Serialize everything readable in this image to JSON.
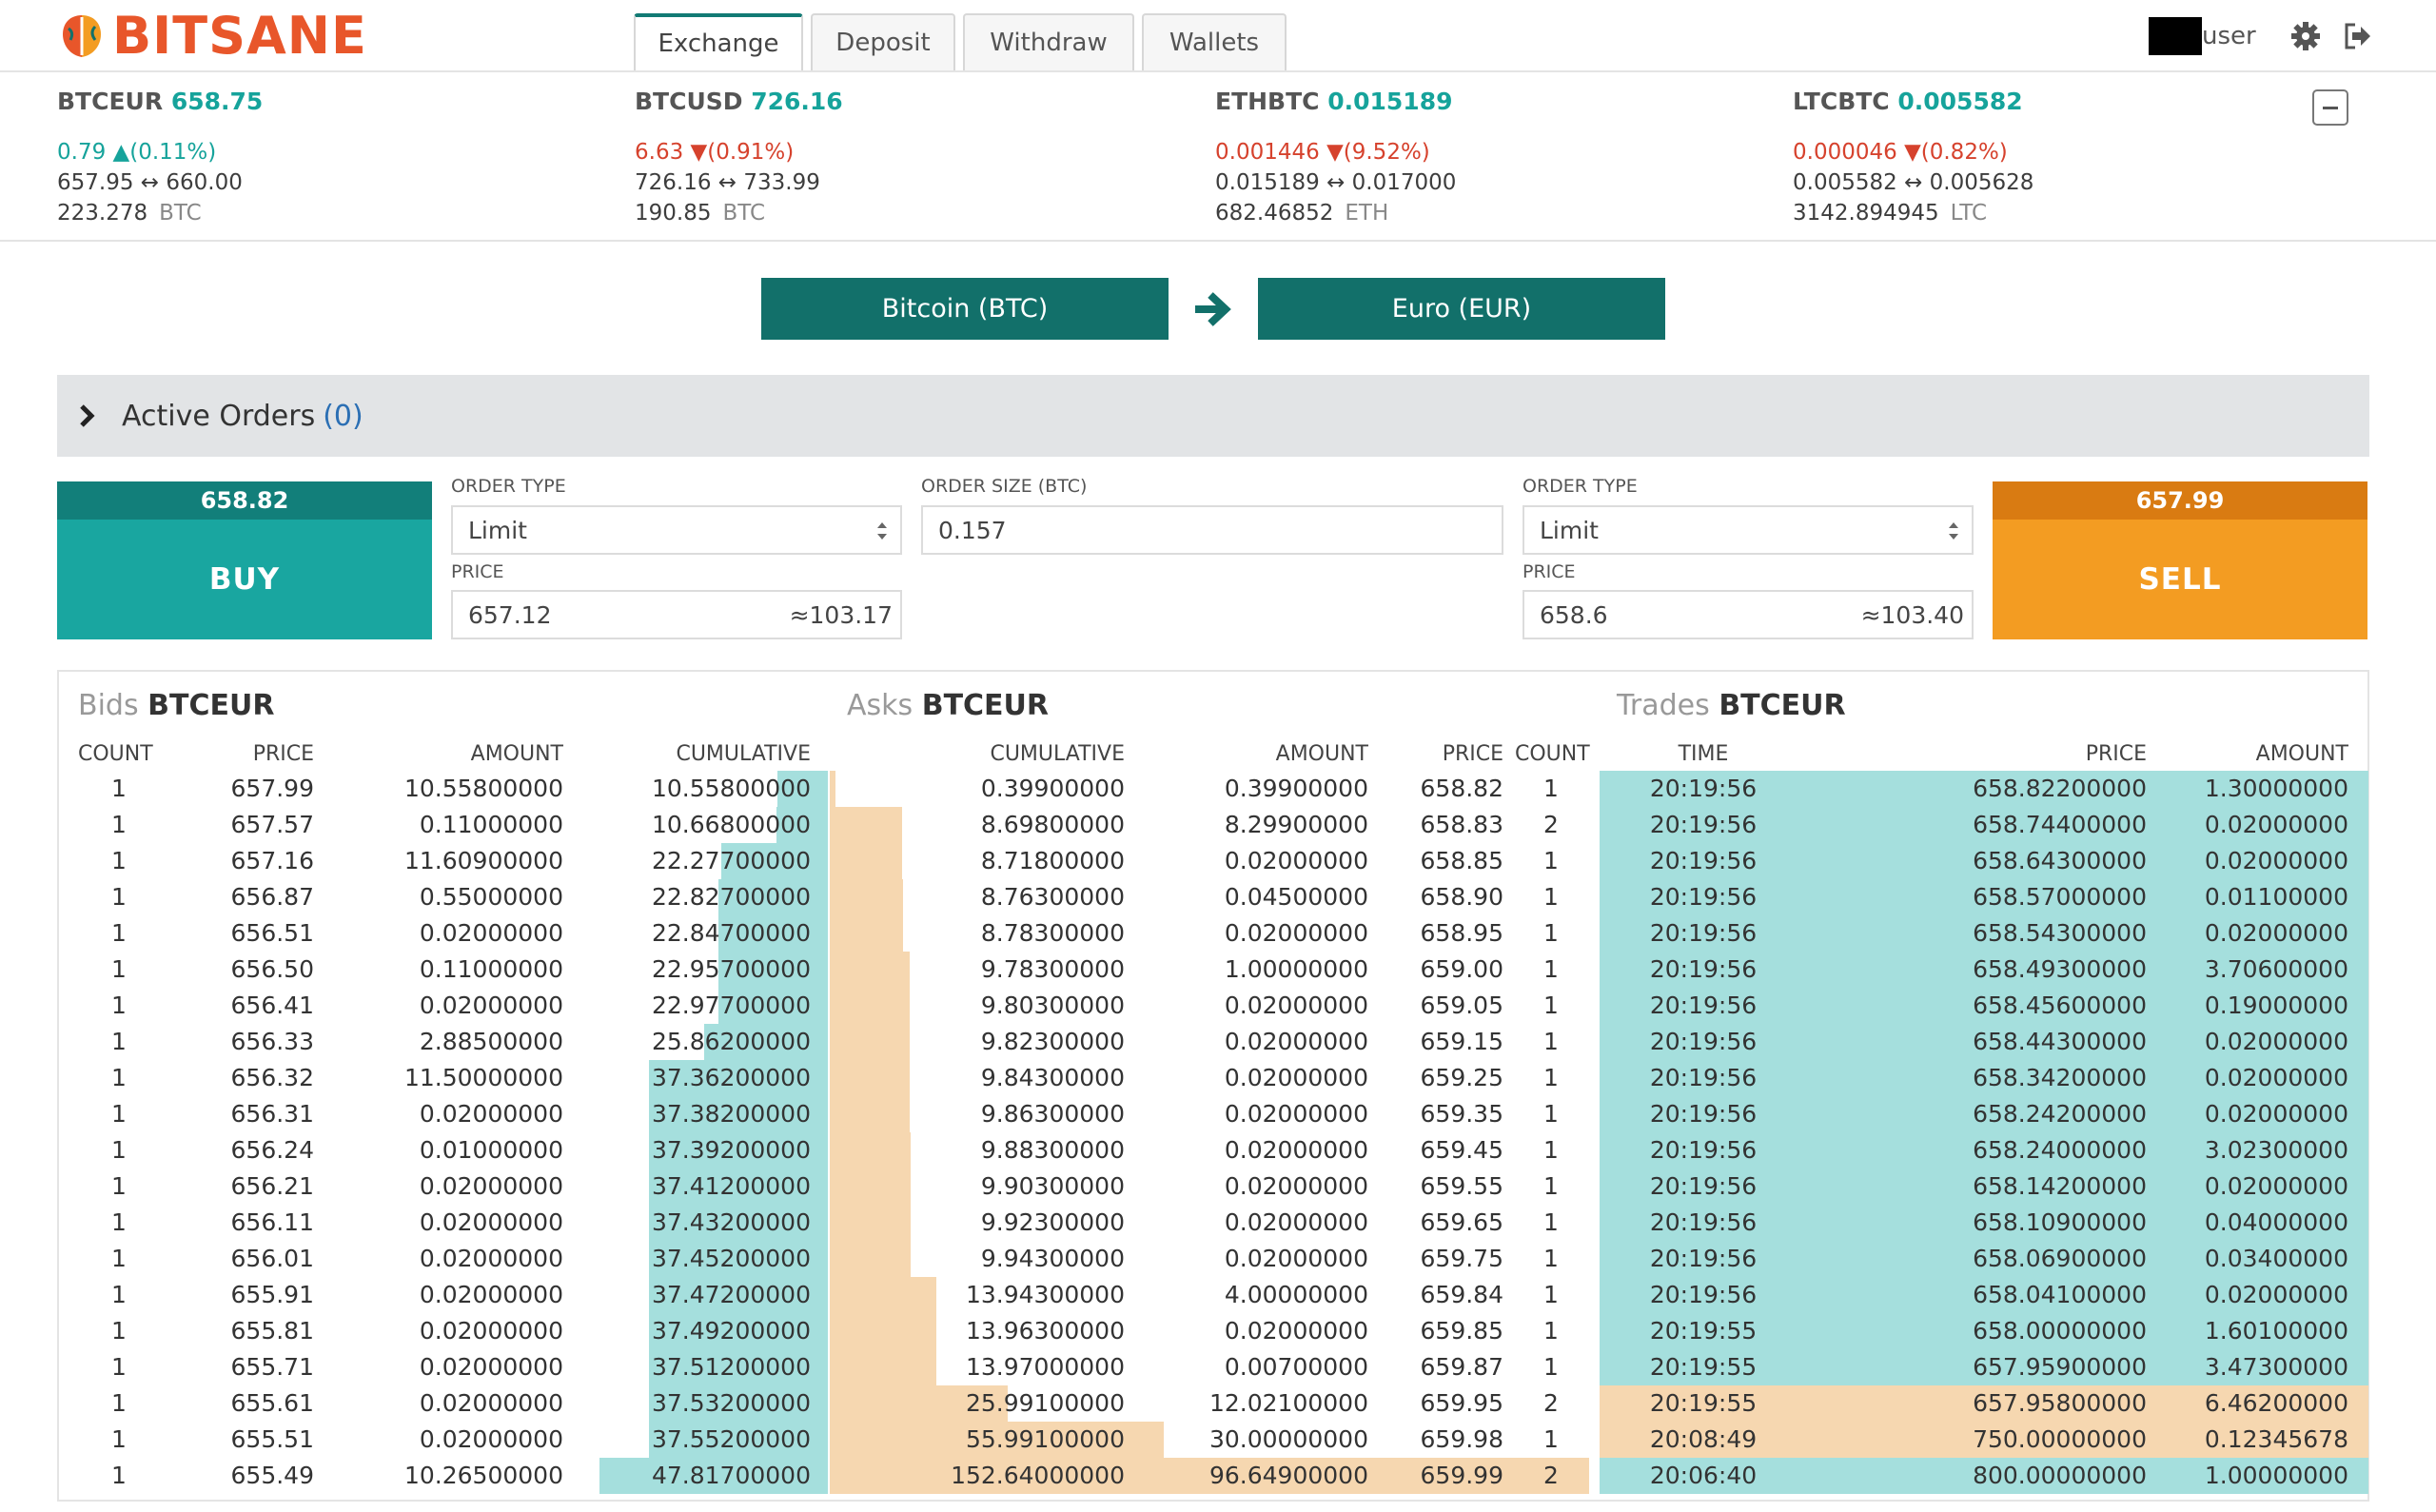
{
  "brand": {
    "name": "BITSANE"
  },
  "nav": {
    "tabs": [
      "Exchange",
      "Deposit",
      "Withdraw",
      "Wallets"
    ],
    "active": "Exchange"
  },
  "user": {
    "name": "user"
  },
  "tickers": [
    {
      "pair": "BTCEUR",
      "price": "658.75",
      "change": "0.79",
      "change_pct": "(0.11%)",
      "direction": "up",
      "low": "657.95",
      "high": "660.00",
      "volume": "223.278",
      "unit": "BTC"
    },
    {
      "pair": "BTCUSD",
      "price": "726.16",
      "change": "6.63",
      "change_pct": "(0.91%)",
      "direction": "down",
      "low": "726.16",
      "high": "733.99",
      "volume": "190.85",
      "unit": "BTC"
    },
    {
      "pair": "ETHBTC",
      "price": "0.015189",
      "change": "0.001446",
      "change_pct": "(9.52%)",
      "direction": "down",
      "low": "0.015189",
      "high": "0.017000",
      "volume": "682.46852",
      "unit": "ETH"
    },
    {
      "pair": "LTCBTC",
      "price": "0.005582",
      "change": "0.000046",
      "change_pct": "(0.82%)",
      "direction": "down",
      "low": "0.005582",
      "high": "0.005628",
      "volume": "3142.894945",
      "unit": "LTC"
    }
  ],
  "currency": {
    "from": "Bitcoin (BTC)",
    "to": "Euro (EUR)"
  },
  "active_orders": {
    "label": "Active Orders",
    "count": "(0)"
  },
  "order_form": {
    "buy": {
      "price": "658.82",
      "label": "BUY"
    },
    "sell": {
      "price": "657.99",
      "label": "SELL"
    },
    "buy_order_type_label": "ORDER TYPE",
    "buy_order_type": "Limit",
    "buy_price_label": "PRICE",
    "buy_price": "657.12",
    "buy_total": "≈103.17",
    "size_label": "ORDER SIZE (BTC)",
    "size": "0.157",
    "sell_order_type_label": "ORDER TYPE",
    "sell_order_type": "Limit",
    "sell_price_label": "PRICE",
    "sell_price": "658.6",
    "sell_total": "≈103.40"
  },
  "bids": {
    "title_prefix": "Bids",
    "title_pair": "BTCEUR",
    "headers": [
      "COUNT",
      "PRICE",
      "AMOUNT",
      "CUMULATIVE"
    ],
    "rows": [
      [
        "1",
        "657.99",
        "10.55800000",
        "10.55800000"
      ],
      [
        "1",
        "657.57",
        "0.11000000",
        "10.66800000"
      ],
      [
        "1",
        "657.16",
        "11.60900000",
        "22.27700000"
      ],
      [
        "1",
        "656.87",
        "0.55000000",
        "22.82700000"
      ],
      [
        "1",
        "656.51",
        "0.02000000",
        "22.84700000"
      ],
      [
        "1",
        "656.50",
        "0.11000000",
        "22.95700000"
      ],
      [
        "1",
        "656.41",
        "0.02000000",
        "22.97700000"
      ],
      [
        "1",
        "656.33",
        "2.88500000",
        "25.86200000"
      ],
      [
        "1",
        "656.32",
        "11.50000000",
        "37.36200000"
      ],
      [
        "1",
        "656.31",
        "0.02000000",
        "37.38200000"
      ],
      [
        "1",
        "656.24",
        "0.01000000",
        "37.39200000"
      ],
      [
        "1",
        "656.21",
        "0.02000000",
        "37.41200000"
      ],
      [
        "1",
        "656.11",
        "0.02000000",
        "37.43200000"
      ],
      [
        "1",
        "656.01",
        "0.02000000",
        "37.45200000"
      ],
      [
        "1",
        "655.91",
        "0.02000000",
        "37.47200000"
      ],
      [
        "1",
        "655.81",
        "0.02000000",
        "37.49200000"
      ],
      [
        "1",
        "655.71",
        "0.02000000",
        "37.51200000"
      ],
      [
        "1",
        "655.61",
        "0.02000000",
        "37.53200000"
      ],
      [
        "1",
        "655.51",
        "0.02000000",
        "37.55200000"
      ],
      [
        "1",
        "655.49",
        "10.26500000",
        "47.81700000"
      ]
    ]
  },
  "asks": {
    "title_prefix": "Asks",
    "title_pair": "BTCEUR",
    "headers": [
      "CUMULATIVE",
      "AMOUNT",
      "PRICE",
      "COUNT"
    ],
    "rows": [
      [
        "0.39900000",
        "0.39900000",
        "658.82",
        "1"
      ],
      [
        "8.69800000",
        "8.29900000",
        "658.83",
        "2"
      ],
      [
        "8.71800000",
        "0.02000000",
        "658.85",
        "1"
      ],
      [
        "8.76300000",
        "0.04500000",
        "658.90",
        "1"
      ],
      [
        "8.78300000",
        "0.02000000",
        "658.95",
        "1"
      ],
      [
        "9.78300000",
        "1.00000000",
        "659.00",
        "1"
      ],
      [
        "9.80300000",
        "0.02000000",
        "659.05",
        "1"
      ],
      [
        "9.82300000",
        "0.02000000",
        "659.15",
        "1"
      ],
      [
        "9.84300000",
        "0.02000000",
        "659.25",
        "1"
      ],
      [
        "9.86300000",
        "0.02000000",
        "659.35",
        "1"
      ],
      [
        "9.88300000",
        "0.02000000",
        "659.45",
        "1"
      ],
      [
        "9.90300000",
        "0.02000000",
        "659.55",
        "1"
      ],
      [
        "9.92300000",
        "0.02000000",
        "659.65",
        "1"
      ],
      [
        "9.94300000",
        "0.02000000",
        "659.75",
        "1"
      ],
      [
        "13.94300000",
        "4.00000000",
        "659.84",
        "1"
      ],
      [
        "13.96300000",
        "0.02000000",
        "659.85",
        "1"
      ],
      [
        "13.97000000",
        "0.00700000",
        "659.87",
        "1"
      ],
      [
        "25.99100000",
        "12.02100000",
        "659.95",
        "2"
      ],
      [
        "55.99100000",
        "30.00000000",
        "659.98",
        "1"
      ],
      [
        "152.64000000",
        "96.64900000",
        "659.99",
        "2"
      ]
    ]
  },
  "trades": {
    "title_prefix": "Trades",
    "title_pair": "BTCEUR",
    "headers": [
      "TIME",
      "PRICE",
      "AMOUNT"
    ],
    "rows": [
      [
        "20:19:56",
        "658.82200000",
        "1.30000000",
        "buy"
      ],
      [
        "20:19:56",
        "658.74400000",
        "0.02000000",
        "buy"
      ],
      [
        "20:19:56",
        "658.64300000",
        "0.02000000",
        "buy"
      ],
      [
        "20:19:56",
        "658.57000000",
        "0.01100000",
        "buy"
      ],
      [
        "20:19:56",
        "658.54300000",
        "0.02000000",
        "buy"
      ],
      [
        "20:19:56",
        "658.49300000",
        "3.70600000",
        "buy"
      ],
      [
        "20:19:56",
        "658.45600000",
        "0.19000000",
        "buy"
      ],
      [
        "20:19:56",
        "658.44300000",
        "0.02000000",
        "buy"
      ],
      [
        "20:19:56",
        "658.34200000",
        "0.02000000",
        "buy"
      ],
      [
        "20:19:56",
        "658.24200000",
        "0.02000000",
        "buy"
      ],
      [
        "20:19:56",
        "658.24000000",
        "3.02300000",
        "buy"
      ],
      [
        "20:19:56",
        "658.14200000",
        "0.02000000",
        "buy"
      ],
      [
        "20:19:56",
        "658.10900000",
        "0.04000000",
        "buy"
      ],
      [
        "20:19:56",
        "658.06900000",
        "0.03400000",
        "buy"
      ],
      [
        "20:19:56",
        "658.04100000",
        "0.02000000",
        "buy"
      ],
      [
        "20:19:55",
        "658.00000000",
        "1.60100000",
        "buy"
      ],
      [
        "20:19:55",
        "657.95900000",
        "3.47300000",
        "buy"
      ],
      [
        "20:19:55",
        "657.95800000",
        "6.46200000",
        "sell"
      ],
      [
        "20:08:49",
        "750.00000000",
        "0.12345678",
        "sell"
      ],
      [
        "20:06:40",
        "800.00000000",
        "1.00000000",
        "buy"
      ]
    ]
  },
  "colors": {
    "brand": "#e8562a",
    "teal": "#19a6a0",
    "dark_teal": "#12706a",
    "orange": "#f39c22",
    "up": "#16a39b",
    "down": "#d6422d",
    "bid_bar": "#a5dfdd",
    "ask_bar": "#f6d7b0"
  },
  "icons": [
    "brain-logo-icon",
    "gear-icon",
    "logout-icon",
    "minus-icon",
    "arrow-right-icon",
    "chevron-right-icon",
    "select-arrows-icon",
    "caret-up-icon",
    "caret-down-icon",
    "range-arrow-icon"
  ]
}
